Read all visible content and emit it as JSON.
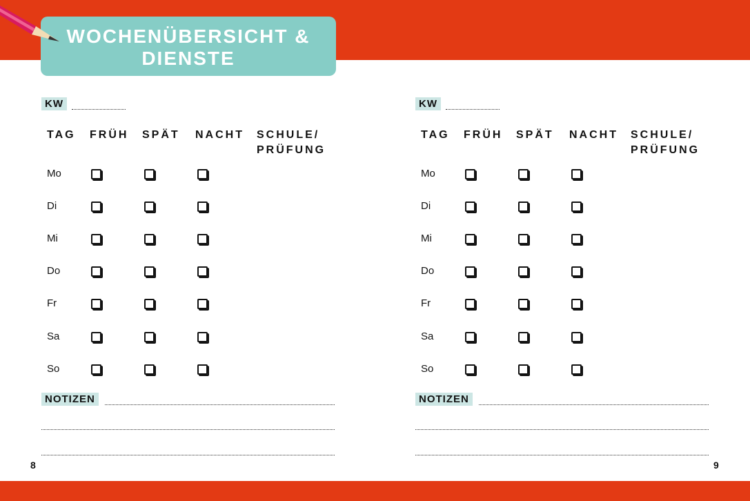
{
  "title": "WOCHENÜBERSICHT & DIENSTE",
  "title_lines": [
    "WOCHENÜBERSICHT &",
    "DIENSTE"
  ],
  "colors": {
    "band": "#e33a14",
    "title_bg": "#86cdc6",
    "label_bg": "#cce6e4"
  },
  "pages": [
    {
      "page_number": "8",
      "kw_label": "KW",
      "notes_label": "NOTIZEN",
      "columns": [
        "TAG",
        "FRÜH",
        "SPÄT",
        "NACHT",
        "SCHULE/\nPRÜFUNG"
      ],
      "days": [
        "Mo",
        "Di",
        "Mi",
        "Do",
        "Fr",
        "Sa",
        "So"
      ]
    },
    {
      "page_number": "9",
      "kw_label": "KW",
      "notes_label": "NOTIZEN",
      "columns": [
        "TAG",
        "FRÜH",
        "SPÄT",
        "NACHT",
        "SCHULE/\nPRÜFUNG"
      ],
      "days": [
        "Mo",
        "Di",
        "Mi",
        "Do",
        "Fr",
        "Sa",
        "So"
      ]
    }
  ],
  "icons": {
    "decoration": "pencil-icon",
    "checkbox": "checkbox-icon"
  }
}
